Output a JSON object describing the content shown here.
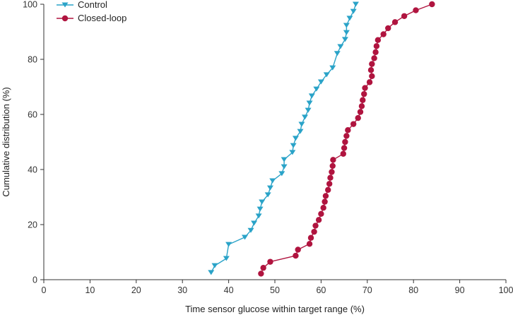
{
  "chart_data": {
    "type": "line",
    "xlabel": "Time sensor glucose within target range (%)",
    "ylabel": "Cumulative distribution (%)",
    "xlim": [
      0,
      100
    ],
    "ylim": [
      0,
      100
    ],
    "x_ticks": [
      0,
      10,
      20,
      30,
      40,
      50,
      60,
      70,
      80,
      90,
      100
    ],
    "y_ticks": [
      0,
      20,
      40,
      60,
      80,
      100
    ],
    "grid": false,
    "legend_position": "top-left",
    "series": [
      {
        "name": "Control",
        "color": "#2aa3c8",
        "marker": "triangle-down",
        "points": [
          [
            36.2,
            2.6
          ],
          [
            37.0,
            5.1
          ],
          [
            39.5,
            7.7
          ],
          [
            40.0,
            12.8
          ],
          [
            43.5,
            15.4
          ],
          [
            44.8,
            17.9
          ],
          [
            45.5,
            20.5
          ],
          [
            46.5,
            23.1
          ],
          [
            46.8,
            25.6
          ],
          [
            47.2,
            28.2
          ],
          [
            48.5,
            30.8
          ],
          [
            49.0,
            33.3
          ],
          [
            49.5,
            35.9
          ],
          [
            51.5,
            38.5
          ],
          [
            52.0,
            41.0
          ],
          [
            52.0,
            43.6
          ],
          [
            53.8,
            46.2
          ],
          [
            54.0,
            48.7
          ],
          [
            54.5,
            51.3
          ],
          [
            55.5,
            53.8
          ],
          [
            55.8,
            56.4
          ],
          [
            56.5,
            59.0
          ],
          [
            57.2,
            61.5
          ],
          [
            57.5,
            64.1
          ],
          [
            58.0,
            66.7
          ],
          [
            59.0,
            69.2
          ],
          [
            60.0,
            71.8
          ],
          [
            61.2,
            74.4
          ],
          [
            62.5,
            76.9
          ],
          [
            63.5,
            82.1
          ],
          [
            64.2,
            84.6
          ],
          [
            65.2,
            87.2
          ],
          [
            65.5,
            89.7
          ],
          [
            65.5,
            92.3
          ],
          [
            66.2,
            94.9
          ],
          [
            67.0,
            97.4
          ],
          [
            67.5,
            100.0
          ]
        ]
      },
      {
        "name": "Closed-loop",
        "color": "#b0143f",
        "marker": "circle",
        "points": [
          [
            47.0,
            2.2
          ],
          [
            47.5,
            4.3
          ],
          [
            49.0,
            6.5
          ],
          [
            54.5,
            8.7
          ],
          [
            55.0,
            10.9
          ],
          [
            57.5,
            13.0
          ],
          [
            57.8,
            15.2
          ],
          [
            58.5,
            17.4
          ],
          [
            58.8,
            19.6
          ],
          [
            59.5,
            21.7
          ],
          [
            60.0,
            23.9
          ],
          [
            60.5,
            26.1
          ],
          [
            60.8,
            28.3
          ],
          [
            61.0,
            30.4
          ],
          [
            61.5,
            32.6
          ],
          [
            61.8,
            34.8
          ],
          [
            62.0,
            37.0
          ],
          [
            62.3,
            39.1
          ],
          [
            62.5,
            41.3
          ],
          [
            62.6,
            43.5
          ],
          [
            64.8,
            45.7
          ],
          [
            65.0,
            47.8
          ],
          [
            65.2,
            50.0
          ],
          [
            65.5,
            52.2
          ],
          [
            65.8,
            54.3
          ],
          [
            67.0,
            56.5
          ],
          [
            68.0,
            58.7
          ],
          [
            68.5,
            60.9
          ],
          [
            68.8,
            63.0
          ],
          [
            69.0,
            65.2
          ],
          [
            69.3,
            67.4
          ],
          [
            69.5,
            69.6
          ],
          [
            70.5,
            71.7
          ],
          [
            71.0,
            73.9
          ],
          [
            70.8,
            76.1
          ],
          [
            71.0,
            78.3
          ],
          [
            71.5,
            80.4
          ],
          [
            71.8,
            82.6
          ],
          [
            72.0,
            84.8
          ],
          [
            72.3,
            87.0
          ],
          [
            73.5,
            89.1
          ],
          [
            74.5,
            91.3
          ],
          [
            76.0,
            93.5
          ],
          [
            78.0,
            95.7
          ],
          [
            80.5,
            97.8
          ],
          [
            84.0,
            100.0
          ]
        ]
      }
    ]
  }
}
